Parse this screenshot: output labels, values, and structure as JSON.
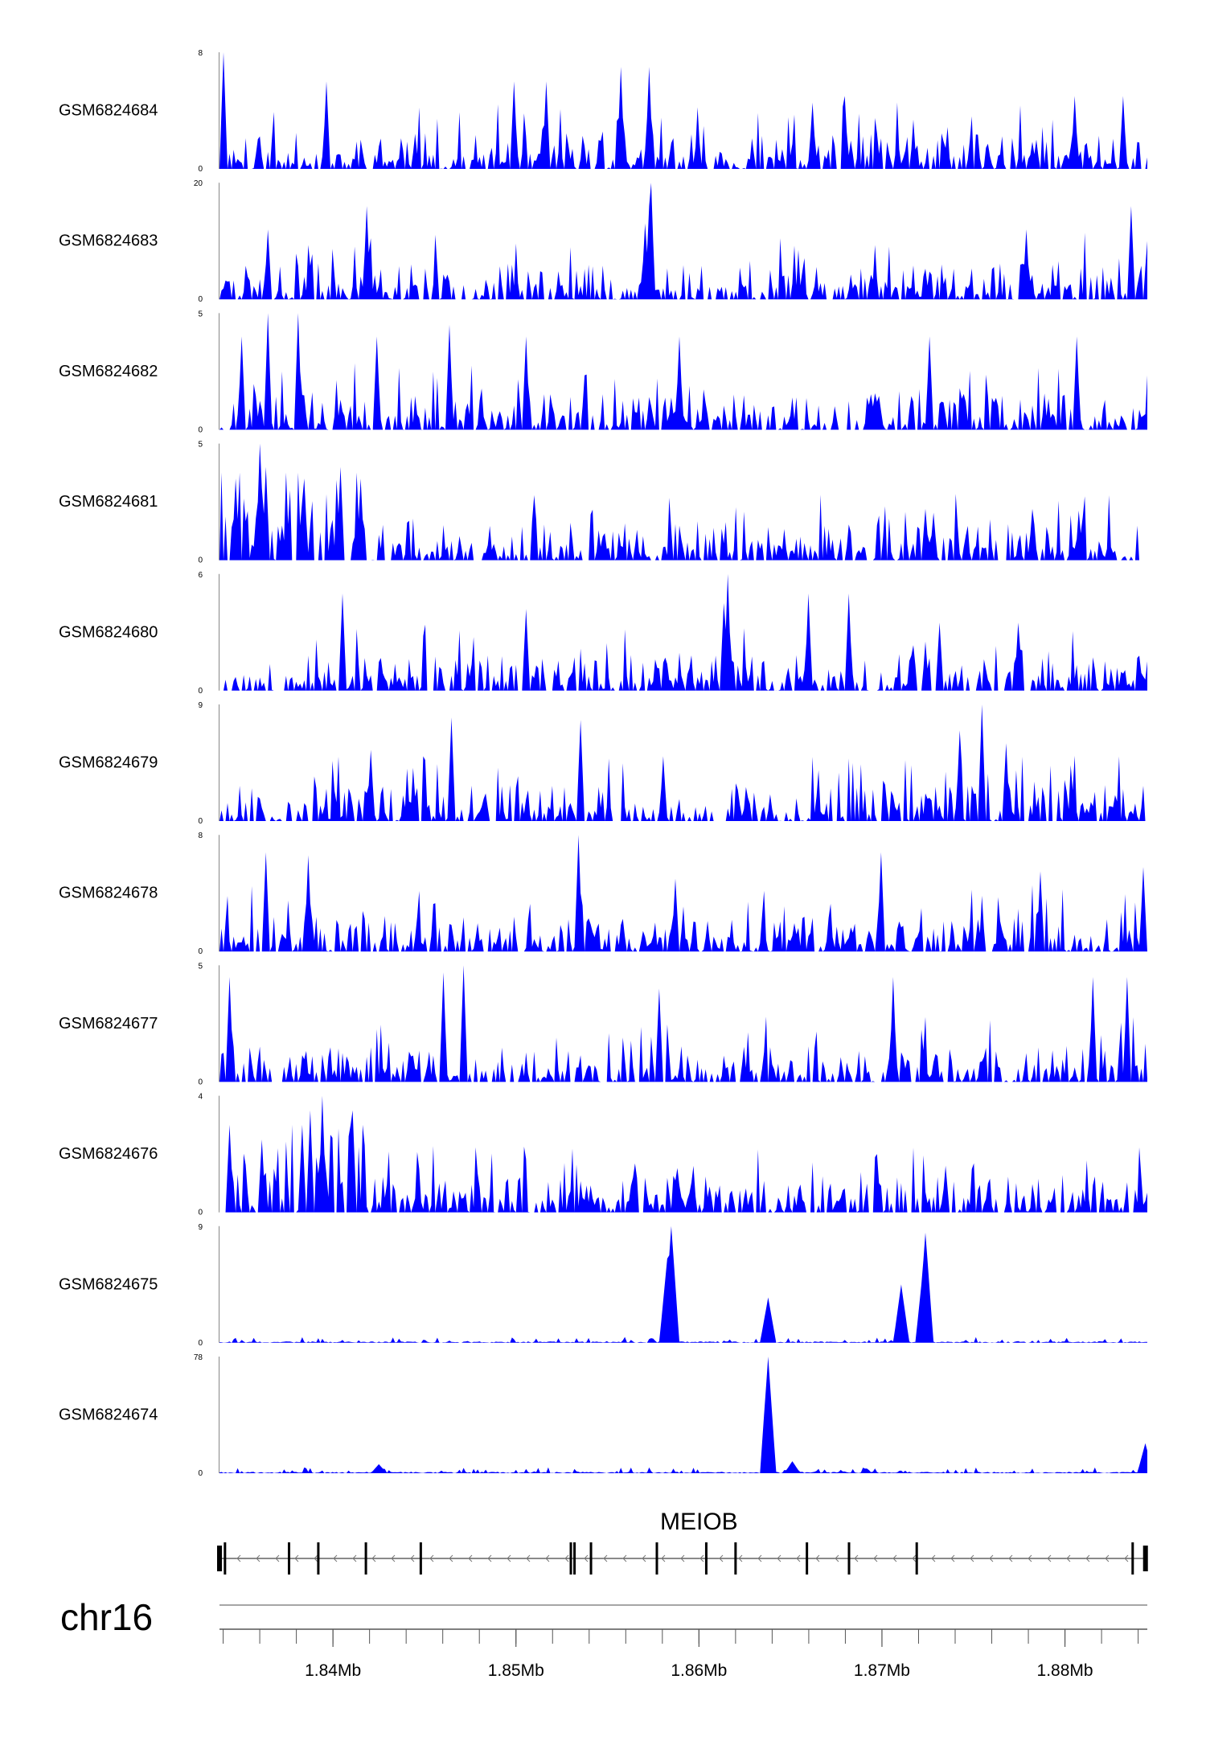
{
  "chart_data": {
    "type": "area",
    "title": "",
    "xlabel": "",
    "ylabel": "",
    "track_color": "#0000ff",
    "region": {
      "chromosome": "chr16",
      "start": 1.8338,
      "end": 1.8845,
      "unit": "Mb"
    },
    "x_ticks": [
      {
        "value": 1.84,
        "label": "1.84Mb"
      },
      {
        "value": 1.85,
        "label": "1.85Mb"
      },
      {
        "value": 1.86,
        "label": "1.86Mb"
      },
      {
        "value": 1.87,
        "label": "1.87Mb"
      },
      {
        "value": 1.88,
        "label": "1.88Mb"
      }
    ],
    "minor_tick_step": 0.002,
    "tracks": [
      {
        "name": "GSM6824684",
        "ymax_label": "8",
        "ymin_label": "0",
        "ymax": 8,
        "mode": "noisy",
        "seed": 11,
        "peaks": [
          [
            1.834,
            8.0
          ],
          [
            1.8396,
            6.0
          ],
          [
            1.8499,
            6.0
          ],
          [
            1.8517,
            6.0
          ],
          [
            1.8557,
            7.0
          ],
          [
            1.8573,
            7.0
          ],
          [
            1.8573,
            6.5
          ],
          [
            1.868,
            5.0
          ],
          [
            1.8805,
            5.0
          ],
          [
            1.8832,
            5.0
          ]
        ],
        "end": 1.8845
      },
      {
        "name": "GSM6824683",
        "ymax_label": "20",
        "ymin_label": "0",
        "ymax": 20,
        "mode": "noisy",
        "seed": 23,
        "peaks": [
          [
            1.8364,
            12.0
          ],
          [
            1.8418,
            16.0
          ],
          [
            1.8574,
            20.0
          ],
          [
            1.8571,
            13.0
          ],
          [
            1.8573,
            16.0
          ],
          [
            1.8779,
            12.0
          ],
          [
            1.8836,
            16.0
          ]
        ],
        "end": 1.8845
      },
      {
        "name": "GSM6824682",
        "ymax_label": "5",
        "ymin_label": "0",
        "ymax": 5,
        "mode": "noisy",
        "seed": 37,
        "peaks": [
          [
            1.8365,
            5.0
          ],
          [
            1.8381,
            5.0
          ],
          [
            1.835,
            4.0
          ],
          [
            1.8424,
            4.0
          ],
          [
            1.8464,
            4.5
          ],
          [
            1.8505,
            4.0
          ],
          [
            1.8589,
            4.0
          ],
          [
            1.8726,
            4.0
          ],
          [
            1.8806,
            4.0
          ]
        ],
        "end": 1.8845
      },
      {
        "name": "GSM6824681",
        "ymax_label": "5",
        "ymin_label": "0",
        "ymax": 5,
        "mode": "front",
        "seed": 41,
        "peaks": [
          [
            1.836,
            5.0
          ],
          [
            1.8347,
            3.5
          ],
          [
            1.8363,
            4.0
          ],
          [
            1.8384,
            3.5
          ],
          [
            1.8404,
            4.0
          ],
          [
            1.8415,
            3.5
          ],
          [
            1.8724,
            2.2
          ],
          [
            1.8782,
            2.2
          ]
        ],
        "end": 1.884
      },
      {
        "name": "GSM6824680",
        "ymax_label": "6",
        "ymin_label": "0",
        "ymax": 6,
        "mode": "noisy",
        "seed": 53,
        "peaks": [
          [
            1.8405,
            5.0
          ],
          [
            1.8506,
            4.2
          ],
          [
            1.8616,
            6.0
          ],
          [
            1.8613,
            4.5
          ],
          [
            1.866,
            5.0
          ],
          [
            1.8682,
            5.0
          ],
          [
            1.8731,
            3.5
          ],
          [
            1.8775,
            3.5
          ]
        ],
        "end": 1.8845
      },
      {
        "name": "GSM6824679",
        "ymax_label": "9",
        "ymin_label": "0",
        "ymax": 9,
        "mode": "noisy",
        "seed": 67,
        "peaks": [
          [
            1.8465,
            8.0
          ],
          [
            1.8535,
            7.8
          ],
          [
            1.8421,
            5.5
          ],
          [
            1.858,
            5.0
          ],
          [
            1.8742,
            7.0
          ],
          [
            1.8755,
            9.0
          ],
          [
            1.8768,
            6.0
          ]
        ],
        "end": 1.8845
      },
      {
        "name": "GSM6824678",
        "ymax_label": "8",
        "ymin_label": "0",
        "ymax": 8,
        "mode": "noisy",
        "seed": 71,
        "peaks": [
          [
            1.8363,
            6.8
          ],
          [
            1.8386,
            6.6
          ],
          [
            1.8534,
            8.0
          ],
          [
            1.8587,
            5.0
          ],
          [
            1.87,
            6.8
          ],
          [
            1.8787,
            5.5
          ],
          [
            1.8843,
            5.8
          ]
        ],
        "end": 1.8845
      },
      {
        "name": "GSM6824677",
        "ymax_label": "5",
        "ymin_label": "0",
        "ymax": 5,
        "mode": "noisy",
        "seed": 83,
        "peaks": [
          [
            1.8343,
            4.5
          ],
          [
            1.846,
            4.7
          ],
          [
            1.8471,
            5.0
          ],
          [
            1.8578,
            4.0
          ],
          [
            1.8706,
            4.5
          ],
          [
            1.8815,
            4.5
          ],
          [
            1.8834,
            4.5
          ]
        ],
        "end": 1.8845
      },
      {
        "name": "GSM6824676",
        "ymax_label": "4",
        "ymin_label": "0",
        "ymax": 4,
        "mode": "front",
        "seed": 97,
        "peaks": [
          [
            1.8343,
            3.0
          ],
          [
            1.8361,
            2.5
          ],
          [
            1.8383,
            3.0
          ],
          [
            1.8388,
            3.5
          ],
          [
            1.8394,
            4.0
          ],
          [
            1.8411,
            3.5
          ],
          [
            1.8697,
            2.0
          ],
          [
            1.8735,
            1.6
          ]
        ],
        "end": 1.8845
      },
      {
        "name": "GSM6824675",
        "ymax_label": "9",
        "ymin_label": "0",
        "ymax": 9,
        "mode": "baseline",
        "seed": 101,
        "peaks": [
          [
            1.8585,
            9.0
          ],
          [
            1.8583,
            6.5
          ],
          [
            1.8638,
            3.5
          ],
          [
            1.871,
            4.5
          ],
          [
            1.8724,
            8.5
          ],
          [
            1.8723,
            6.0
          ]
        ],
        "end": 1.8845
      },
      {
        "name": "GSM6824674",
        "ymax_label": "78",
        "ymin_label": "0",
        "ymax": 78,
        "mode": "baseline",
        "seed": 113,
        "peaks": [
          [
            1.8638,
            78.0
          ],
          [
            1.8651,
            8.0
          ],
          [
            1.8425,
            6.0
          ],
          [
            1.8844,
            20.0
          ]
        ],
        "end": 1.8845
      }
    ],
    "gene": {
      "name": "MEIOB",
      "strand": "-",
      "start": 1.8338,
      "end": 1.8844,
      "exons": [
        1.8338,
        1.8341,
        1.8376,
        1.8392,
        1.8418,
        1.8448,
        1.853,
        1.8532,
        1.8541,
        1.8577,
        1.8604,
        1.862,
        1.8659,
        1.8682,
        1.8719,
        1.8837,
        1.8844
      ]
    }
  }
}
